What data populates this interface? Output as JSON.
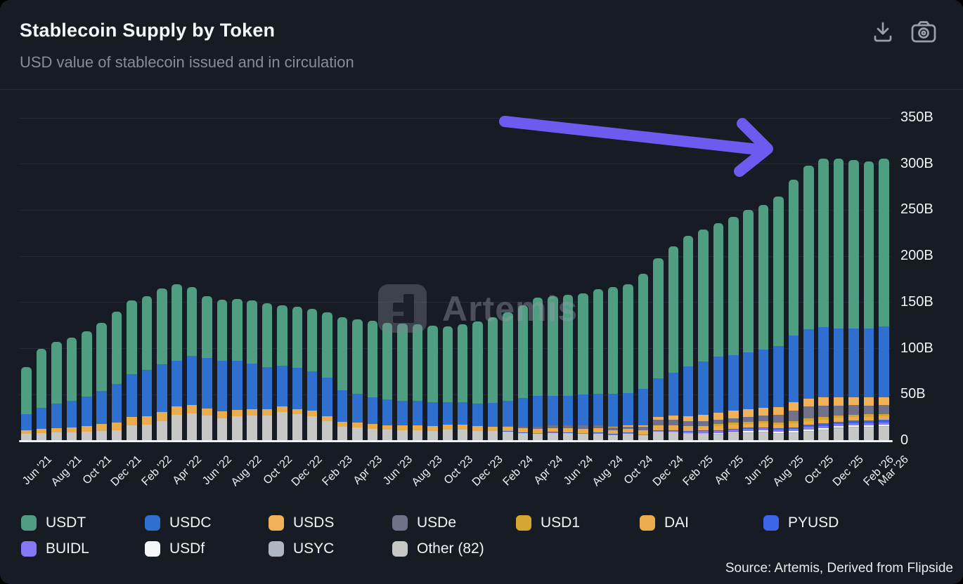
{
  "header": {
    "title": "Stablecoin Supply by Token",
    "subtitle": "USD value of stablecoin issued and in circulation"
  },
  "toolbar": {
    "icons": [
      "download-icon",
      "camera-icon"
    ],
    "icon_color": "#99a0ab"
  },
  "watermark": {
    "text": "Artemis"
  },
  "source_note": "Source: Artemis, Derived from Flipside",
  "annotation": {
    "type": "arrow",
    "color": "#6d5bef",
    "points_at": "late 2025 supply plateau ~305B"
  },
  "y_axis": {
    "labels": [
      "0",
      "50B",
      "100B",
      "150B",
      "200B",
      "250B",
      "300B",
      "350B"
    ]
  },
  "colors": {
    "background": "#171b24",
    "gridline": "#252b36",
    "axis_line": "#eef0f3",
    "text": "#f2f4f6",
    "muted_text": "#868d99"
  },
  "chart_data": {
    "type": "bar",
    "stacked": true,
    "unit": "USD billions",
    "title": "Stablecoin Supply by Token",
    "ylim": [
      0,
      350
    ],
    "y_ticks": [
      0,
      50,
      100,
      150,
      200,
      250,
      300,
      350
    ],
    "grid": "horizontal",
    "legend_position": "bottom",
    "x": [
      "Jun '21",
      "Jul '21",
      "Aug '21",
      "Sep '21",
      "Oct '21",
      "Nov '21",
      "Dec '21",
      "Jan '22",
      "Feb '22",
      "Mar '22",
      "Apr '22",
      "May '22",
      "Jun '22",
      "Jul '22",
      "Aug '22",
      "Sep '22",
      "Oct '22",
      "Nov '22",
      "Dec '22",
      "Jan '23",
      "Feb '23",
      "Mar '23",
      "Apr '23",
      "May '23",
      "Jun '23",
      "Jul '23",
      "Aug '23",
      "Sep '23",
      "Oct '23",
      "Nov '23",
      "Dec '23",
      "Jan '24",
      "Feb '24",
      "Mar '24",
      "Apr '24",
      "May '24",
      "Jun '24",
      "Jul '24",
      "Aug '24",
      "Sep '24",
      "Oct '24",
      "Nov '24",
      "Dec '24",
      "Jan '25",
      "Feb '25",
      "Mar '25",
      "Apr '25",
      "May '25",
      "Jun '25",
      "Jul '25",
      "Aug '25",
      "Sep '25",
      "Oct '25",
      "Nov '25",
      "Dec '25",
      "Jan '26",
      "Feb '26",
      "Mar '26"
    ],
    "tick_indices": [
      0,
      2,
      4,
      6,
      8,
      10,
      12,
      14,
      16,
      18,
      20,
      22,
      24,
      26,
      28,
      30,
      32,
      34,
      36,
      38,
      40,
      42,
      44,
      46,
      48,
      50,
      52,
      54,
      56,
      57
    ],
    "series": [
      {
        "name": "USDT",
        "legend_label": "USDT",
        "color": "#4f9e82",
        "values": [
          51,
          64,
          67,
          69,
          71,
          74,
          78,
          80,
          80,
          82,
          83,
          75,
          67,
          66,
          67.5,
          68,
          69,
          65.5,
          66,
          68,
          70.5,
          79.5,
          81,
          82.5,
          83,
          83.5,
          83,
          83.5,
          82,
          84,
          88.5,
          93,
          95.4,
          100.6,
          106,
          108,
          109,
          110,
          113,
          116,
          118,
          125,
          130,
          137,
          141,
          143,
          145,
          150,
          154,
          157,
          162,
          169,
          177,
          183,
          184,
          182,
          181,
          182
        ]
      },
      {
        "name": "USDC",
        "legend_label": "USDC",
        "color": "#2e6fd0",
        "values": [
          17.5,
          23,
          26,
          28.5,
          32,
          36,
          42,
          46,
          50,
          52,
          50,
          53,
          55,
          55,
          53,
          50,
          46,
          44,
          44.5,
          42.5,
          41.5,
          34,
          31,
          29.5,
          28,
          27,
          26,
          25.5,
          24.5,
          24.5,
          24.5,
          25.5,
          28,
          31.5,
          33.5,
          32.5,
          32.5,
          33.5,
          34.5,
          36,
          35,
          39,
          42,
          47,
          54,
          58,
          60.5,
          60.5,
          61.5,
          63,
          66.5,
          72,
          75,
          76,
          75,
          74.5,
          75,
          76.5
        ]
      },
      {
        "name": "USDS",
        "legend_label": "USDS",
        "color": "#f0b159",
        "values": [
          0,
          0,
          0,
          0,
          0,
          0,
          0,
          0,
          0,
          0,
          0,
          0,
          0,
          0,
          0,
          0,
          0,
          0,
          0,
          0,
          0,
          0,
          0,
          0,
          0,
          0,
          0,
          0,
          0,
          0,
          0,
          0,
          0,
          0,
          0,
          0,
          0,
          0,
          0,
          0.8,
          1.5,
          2,
          3.5,
          4.5,
          6,
          7,
          7.5,
          8,
          8.5,
          8.5,
          8.5,
          9,
          9,
          9,
          9,
          9,
          8.8,
          8.8
        ]
      },
      {
        "name": "USDe",
        "legend_label": "USDe",
        "color": "#70718a",
        "values": [
          0,
          0,
          0,
          0,
          0,
          0,
          0,
          0,
          0,
          0,
          0,
          0,
          0,
          0,
          0,
          0,
          0,
          0,
          0,
          0,
          0,
          0,
          0,
          0,
          0,
          0,
          0,
          0,
          0,
          0,
          0,
          0,
          0.4,
          1.3,
          2.3,
          2.6,
          3.1,
          3.5,
          3.2,
          2.6,
          2.5,
          3.5,
          5.9,
          5.8,
          5.4,
          5,
          4.7,
          5,
          5.3,
          6.5,
          8,
          11.5,
          13,
          12.5,
          10.5,
          10,
          9.5,
          9.5
        ]
      },
      {
        "name": "USD1",
        "legend_label": "USD1",
        "color": "#d5a634",
        "values": [
          0,
          0,
          0,
          0,
          0,
          0,
          0,
          0,
          0,
          0,
          0,
          0,
          0,
          0,
          0,
          0,
          0,
          0,
          0,
          0,
          0,
          0,
          0,
          0,
          0,
          0,
          0,
          0,
          0,
          0,
          0,
          0,
          0,
          0,
          0,
          0,
          0,
          0,
          0,
          0,
          0,
          0,
          0,
          0,
          0,
          0,
          2.1,
          2.1,
          2.2,
          2.2,
          2.4,
          2.6,
          2.7,
          2.7,
          2.7,
          2.7,
          2.7,
          2.7
        ]
      },
      {
        "name": "DAI",
        "legend_label": "DAI",
        "color": "#e9ad4d",
        "values": [
          4,
          4.5,
          5,
          5.5,
          6,
          7,
          8.5,
          9,
          9.5,
          9.5,
          9,
          9,
          8,
          7.5,
          7,
          7,
          6.5,
          6,
          5.8,
          5.8,
          5.5,
          5.5,
          5.3,
          5,
          4.8,
          5.3,
          5.3,
          5.3,
          5.5,
          5.3,
          5.3,
          4.9,
          4.9,
          4.6,
          4.5,
          4.4,
          4.3,
          4.3,
          4.3,
          4.1,
          3.9,
          4.5,
          5.4,
          5.3,
          5.2,
          4.8,
          4.5,
          4.4,
          4.4,
          4.3,
          4.3,
          4.2,
          4.1,
          4,
          3.9,
          3.8,
          3.7,
          3.7
        ]
      },
      {
        "name": "PYUSD",
        "legend_label": "PYUSD",
        "color": "#3c66e8",
        "values": [
          0,
          0,
          0,
          0,
          0,
          0,
          0,
          0,
          0,
          0,
          0,
          0,
          0,
          0,
          0,
          0,
          0,
          0,
          0,
          0,
          0,
          0,
          0,
          0,
          0,
          0,
          0.1,
          0.1,
          0.2,
          0.2,
          0.3,
          0.3,
          0.3,
          0.3,
          0.4,
          0.4,
          0.4,
          0.6,
          1,
          0.7,
          0.6,
          0.5,
          0.5,
          0.55,
          0.7,
          0.8,
          0.85,
          0.9,
          1,
          1.1,
          1.3,
          1.7,
          2.3,
          2.6,
          3,
          3.1,
          3.1,
          3.2
        ]
      },
      {
        "name": "BUIDL",
        "legend_label": "BUIDL",
        "color": "#8379f5",
        "values": [
          0,
          0,
          0,
          0,
          0,
          0,
          0,
          0,
          0,
          0,
          0,
          0,
          0,
          0,
          0,
          0,
          0,
          0,
          0,
          0,
          0,
          0,
          0,
          0,
          0,
          0,
          0,
          0,
          0,
          0,
          0,
          0,
          0,
          0.3,
          0.4,
          0.45,
          0.5,
          0.5,
          0.5,
          0.55,
          0.55,
          0.55,
          0.65,
          0.65,
          1.2,
          1.9,
          2.9,
          2.9,
          2.8,
          2.4,
          2.2,
          2.3,
          2.5,
          2.4,
          2.3,
          2.3,
          2.2,
          2.2
        ]
      },
      {
        "name": "USDf",
        "legend_label": "USDf",
        "color": "#f4f6f8",
        "values": [
          0,
          0,
          0,
          0,
          0,
          0,
          0,
          0,
          0,
          0,
          0,
          0,
          0,
          0,
          0,
          0,
          0,
          0,
          0,
          0,
          0,
          0,
          0,
          0,
          0,
          0,
          0,
          0,
          0,
          0,
          0,
          0,
          0,
          0,
          0,
          0,
          0,
          0,
          0,
          0,
          0,
          0,
          0,
          0.3,
          0.4,
          0.5,
          0.6,
          0.9,
          1.1,
          1.3,
          1.5,
          1.6,
          1.6,
          1.5,
          1.5,
          1.5,
          1.5,
          1.5
        ]
      },
      {
        "name": "USYC",
        "legend_label": "USYC",
        "color": "#aeb6c2",
        "values": [
          0,
          0,
          0,
          0,
          0,
          0,
          0,
          0,
          0,
          0,
          0,
          0,
          0,
          0,
          0,
          0,
          0,
          0,
          0,
          0,
          0,
          0,
          0,
          0,
          0,
          0,
          0,
          0,
          0,
          0,
          0,
          0,
          0,
          0,
          0,
          0,
          0,
          0,
          0,
          0,
          0,
          0,
          0.4,
          0.5,
          0.6,
          0.7,
          0.7,
          0.7,
          0.8,
          0.9,
          0.9,
          1,
          1,
          1,
          0.9,
          0.9,
          0.9,
          0.9
        ]
      },
      {
        "name": "Other",
        "legend_label": "Other (82)",
        "color": "#c7c7c5",
        "values": [
          7.5,
          8.5,
          9,
          9,
          10,
          11,
          11.5,
          17,
          17.5,
          21.5,
          28,
          30,
          27,
          24.5,
          26.5,
          27,
          27.5,
          31.5,
          28.7,
          26.7,
          21.5,
          15,
          14.7,
          13,
          12.2,
          11.2,
          11.6,
          10.6,
          11.8,
          12,
          10.4,
          10.3,
          10,
          8.4,
          7.9,
          8.65,
          8.2,
          7.6,
          7.5,
          6.25,
          7.95,
          5.95,
          9.65,
          9.4,
          7.5,
          7.3,
          6.65,
          7.6,
          8.4,
          8.8,
          7.4,
          8.1,
          9.8,
          11.3,
          13.2,
          14.2,
          14.6,
          15
        ]
      }
    ]
  }
}
